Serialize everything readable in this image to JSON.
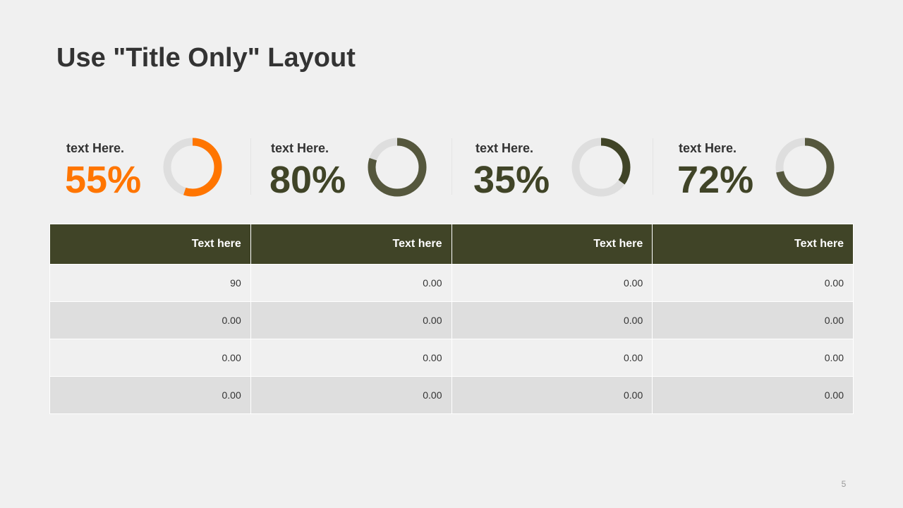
{
  "slide": {
    "title": "Use \"Title Only\" Layout",
    "page_number": "5"
  },
  "stats": [
    {
      "label": "text Here.",
      "value_text": "55%",
      "percent": 55,
      "color": "#ff7500",
      "track_color": "#dedede"
    },
    {
      "label": "text Here.",
      "value_text": "80%",
      "percent": 80,
      "color": "#55573d",
      "track_color": "#dedede"
    },
    {
      "label": "text Here.",
      "value_text": "35%",
      "percent": 35,
      "color": "#404427",
      "track_color": "#dedede"
    },
    {
      "label": "text Here.",
      "value_text": "72%",
      "percent": 72,
      "color": "#55573d",
      "track_color": "#dedede"
    }
  ],
  "value_colors": [
    "#ff7500",
    "#404427",
    "#404427",
    "#404427"
  ],
  "table": {
    "header_color": "#404427",
    "headers": [
      "Text here",
      "Text here",
      "Text here",
      "Text here"
    ],
    "rows": [
      [
        "90",
        "0.00",
        "0.00",
        "0.00"
      ],
      [
        "0.00",
        "0.00",
        "0.00",
        "0.00"
      ],
      [
        "0.00",
        "0.00",
        "0.00",
        "0.00"
      ],
      [
        "0.00",
        "0.00",
        "0.00",
        "0.00"
      ]
    ]
  }
}
